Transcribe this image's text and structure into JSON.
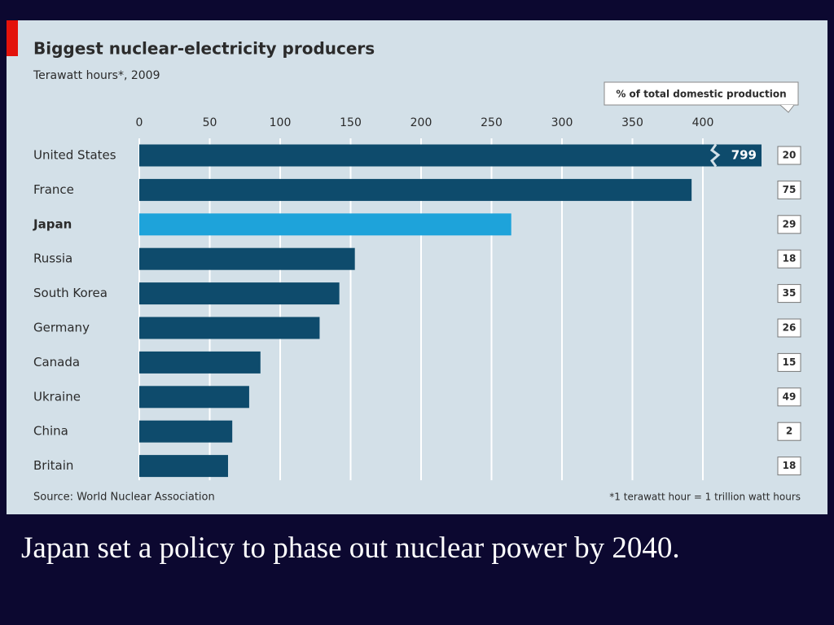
{
  "chart_data": {
    "type": "bar",
    "orientation": "horizontal",
    "title": "Biggest nuclear-electricity producers",
    "subtitle": "Terawatt hours*, 2009",
    "categories": [
      "United States",
      "France",
      "Japan",
      "Russia",
      "South Korea",
      "Germany",
      "Canada",
      "Ukraine",
      "China",
      "Britain"
    ],
    "values": [
      799,
      392,
      264,
      153,
      142,
      128,
      86,
      78,
      66,
      63
    ],
    "value_labels": [
      "799",
      null,
      null,
      null,
      null,
      null,
      null,
      null,
      null,
      null
    ],
    "color": "#0e4b6c",
    "highlight": "Japan",
    "highlight_color": "#1ea3da",
    "xlim": [
      0,
      400
    ],
    "xticks": [
      0,
      50,
      100,
      150,
      200,
      250,
      300,
      350,
      400
    ],
    "grid": true,
    "share": {
      "title": "% of total domestic production",
      "values": [
        20,
        75,
        29,
        18,
        35,
        26,
        15,
        49,
        2,
        18
      ]
    },
    "source": "Source: World Nuclear Association",
    "footnote": "*1 terawatt hour = 1 trillion watt hours"
  },
  "caption": "Japan set a policy to phase out nuclear power by 2040."
}
